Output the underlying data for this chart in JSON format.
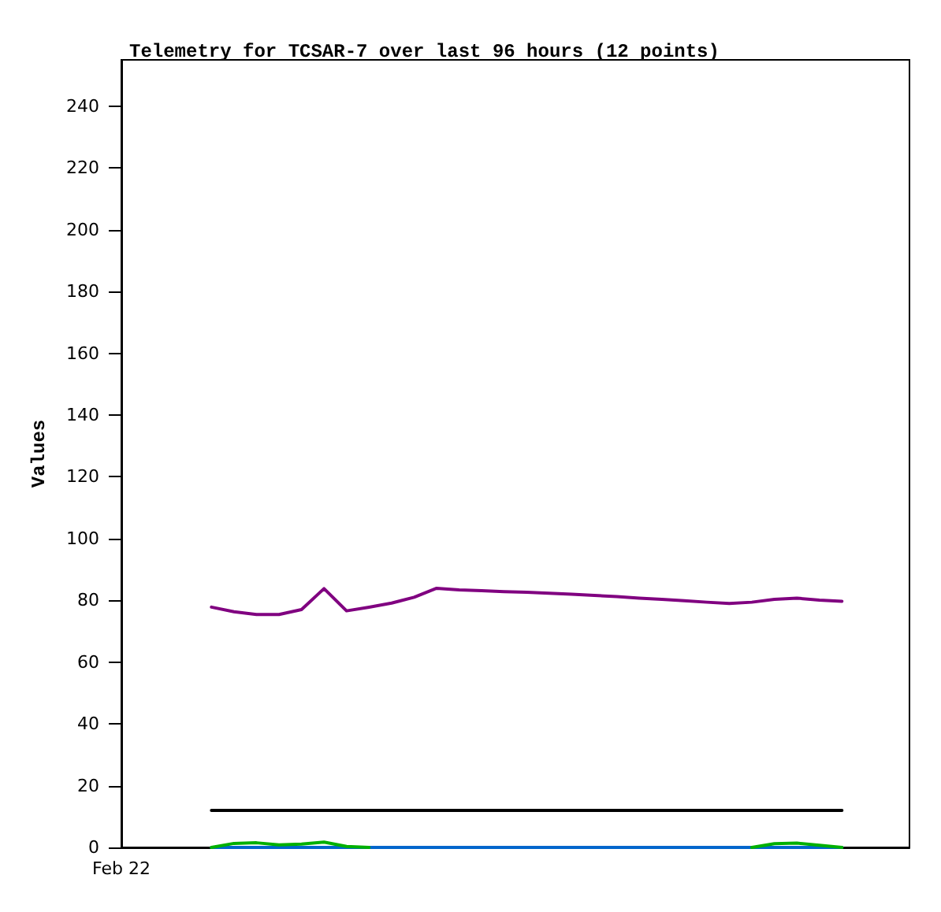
{
  "chart_data": {
    "type": "line",
    "title": "Telemetry for TCSAR-7 over last 96 hours (12 points)",
    "ylabel": "Values",
    "categories": [
      "Feb 22",
      null,
      null,
      null,
      null,
      null,
      null,
      null,
      null,
      null,
      null,
      null,
      null,
      null,
      null,
      null,
      null,
      null,
      null,
      null,
      null,
      null,
      null,
      null,
      null,
      null,
      null,
      null,
      null,
      null,
      null,
      null,
      null,
      null,
      null,
      null
    ],
    "ylim": [
      0,
      255
    ],
    "yticks": [
      0,
      20,
      40,
      60,
      80,
      100,
      120,
      140,
      160,
      180,
      200,
      220,
      240
    ],
    "grid": false,
    "marker": "none",
    "line_style": "solid",
    "series": [
      {
        "color": "#800080",
        "values": [
          null,
          null,
          null,
          null,
          77.8,
          76.3,
          75.4,
          75.4,
          77.0,
          83.8,
          76.6,
          77.8,
          79.1,
          81.0,
          83.9,
          83.4,
          83.1,
          82.8,
          82.6,
          82.3,
          82.0,
          81.6,
          81.2,
          80.7,
          80.3,
          79.9,
          79.4,
          79.0,
          79.4,
          80.3,
          80.7,
          80.1,
          79.7,
          null,
          null,
          null
        ]
      },
      {
        "color": "#000000",
        "values": [
          null,
          null,
          null,
          null,
          12,
          12,
          12,
          12,
          12,
          12,
          12,
          12,
          12,
          12,
          12,
          12,
          12,
          12,
          12,
          12,
          12,
          12,
          12,
          12,
          12,
          12,
          12,
          12,
          12,
          12,
          12,
          12,
          12,
          null,
          null,
          null
        ]
      },
      {
        "color": "#0066cc",
        "values": [
          null,
          null,
          null,
          null,
          0,
          0,
          0,
          0,
          0,
          0,
          0,
          0,
          0,
          0,
          0,
          0,
          0,
          0,
          0,
          0,
          0,
          0,
          0,
          0,
          0,
          0,
          0,
          0,
          0,
          0,
          0,
          0,
          0,
          null,
          null,
          null
        ]
      },
      {
        "color": "#00b000",
        "values": [
          null,
          null,
          null,
          null,
          0,
          1.3,
          1.5,
          0.8,
          1.1,
          1.7,
          0.3,
          0,
          null,
          null,
          null,
          null,
          null,
          null,
          null,
          null,
          null,
          null,
          null,
          null,
          null,
          null,
          null,
          null,
          0,
          1.2,
          1.4,
          0.7,
          0,
          null,
          null,
          null
        ]
      }
    ]
  }
}
